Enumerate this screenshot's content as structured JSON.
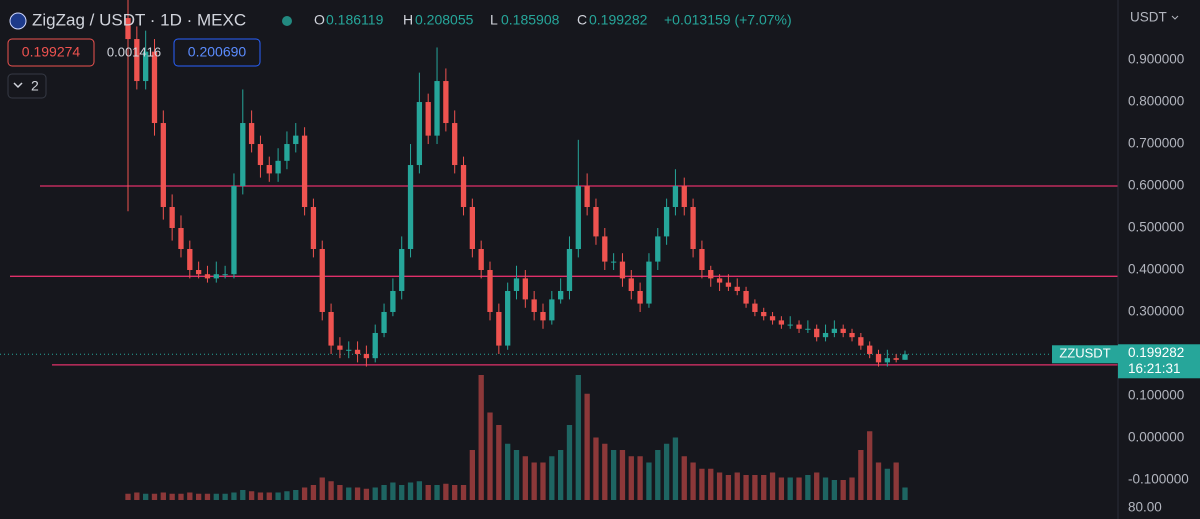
{
  "chart_data": {
    "type": "candlestick",
    "symbol_title": "ZigZag / USDT · 1D · MEXC",
    "ohlc_header": {
      "o_label": "O",
      "o": "0.186119",
      "h_label": "H",
      "h": "0.208055",
      "l_label": "L",
      "l": "0.185908",
      "c_label": "C",
      "c": "0.199282",
      "change": "+0.013159 (+7.07%)"
    },
    "sell_price": "0.199274",
    "spread": "0.001416",
    "buy_price": "0.200690",
    "indicators_count": "2",
    "currency": "USDT",
    "ticker": "ZZUSDT",
    "last_price": "0.199282",
    "countdown": "16:21:31",
    "volume_axis_label": "80.00",
    "open": [
      1.0,
      0.95,
      0.85,
      0.92,
      0.75,
      0.55,
      0.5,
      0.45,
      0.4,
      0.39,
      0.38,
      0.39,
      0.39,
      0.6,
      0.75,
      0.7,
      0.65,
      0.63,
      0.66,
      0.7,
      0.72,
      0.55,
      0.45,
      0.3,
      0.22,
      0.21,
      0.21,
      0.2,
      0.19,
      0.25,
      0.3,
      0.35,
      0.45,
      0.65,
      0.8,
      0.72,
      0.85,
      0.75,
      0.65,
      0.55,
      0.45,
      0.4,
      0.3,
      0.22,
      0.35,
      0.38,
      0.33,
      0.3,
      0.28,
      0.33,
      0.35,
      0.45,
      0.6,
      0.55,
      0.48,
      0.42,
      0.42,
      0.38,
      0.35,
      0.32,
      0.42,
      0.48,
      0.55,
      0.6,
      0.55,
      0.45,
      0.4,
      0.38,
      0.37,
      0.36,
      0.35,
      0.32,
      0.3,
      0.29,
      0.28,
      0.27,
      0.27,
      0.26,
      0.26,
      0.24,
      0.25,
      0.26,
      0.25,
      0.24,
      0.22,
      0.2,
      0.18,
      0.19,
      0.186119
    ],
    "high": [
      1.05,
      0.98,
      0.97,
      0.95,
      0.78,
      0.58,
      0.53,
      0.47,
      0.42,
      0.41,
      0.42,
      0.41,
      0.63,
      0.83,
      0.78,
      0.72,
      0.67,
      0.69,
      0.73,
      0.75,
      0.74,
      0.57,
      0.47,
      0.32,
      0.24,
      0.23,
      0.23,
      0.22,
      0.27,
      0.32,
      0.38,
      0.48,
      0.7,
      0.87,
      0.82,
      0.93,
      0.88,
      0.78,
      0.67,
      0.57,
      0.47,
      0.42,
      0.32,
      0.37,
      0.41,
      0.4,
      0.35,
      0.32,
      0.35,
      0.38,
      0.48,
      0.71,
      0.63,
      0.57,
      0.5,
      0.44,
      0.44,
      0.4,
      0.37,
      0.44,
      0.5,
      0.57,
      0.64,
      0.62,
      0.57,
      0.47,
      0.41,
      0.39,
      0.39,
      0.38,
      0.36,
      0.33,
      0.31,
      0.3,
      0.29,
      0.29,
      0.28,
      0.28,
      0.27,
      0.27,
      0.28,
      0.27,
      0.26,
      0.25,
      0.23,
      0.21,
      0.21,
      0.2,
      0.208055
    ],
    "low": [
      0.54,
      0.83,
      0.83,
      0.72,
      0.52,
      0.47,
      0.43,
      0.38,
      0.38,
      0.37,
      0.37,
      0.38,
      0.38,
      0.58,
      0.68,
      0.62,
      0.61,
      0.61,
      0.64,
      0.68,
      0.53,
      0.43,
      0.28,
      0.2,
      0.19,
      0.19,
      0.18,
      0.17,
      0.18,
      0.24,
      0.29,
      0.33,
      0.43,
      0.63,
      0.7,
      0.7,
      0.73,
      0.63,
      0.53,
      0.43,
      0.38,
      0.28,
      0.2,
      0.21,
      0.33,
      0.31,
      0.28,
      0.26,
      0.27,
      0.32,
      0.33,
      0.43,
      0.53,
      0.46,
      0.4,
      0.4,
      0.36,
      0.33,
      0.3,
      0.31,
      0.4,
      0.46,
      0.53,
      0.53,
      0.43,
      0.38,
      0.36,
      0.35,
      0.35,
      0.34,
      0.31,
      0.29,
      0.28,
      0.27,
      0.26,
      0.26,
      0.25,
      0.25,
      0.23,
      0.23,
      0.24,
      0.24,
      0.23,
      0.21,
      0.19,
      0.17,
      0.17,
      0.18,
      0.185908
    ],
    "close": [
      0.95,
      0.85,
      0.92,
      0.75,
      0.55,
      0.5,
      0.45,
      0.4,
      0.39,
      0.38,
      0.39,
      0.39,
      0.6,
      0.75,
      0.7,
      0.65,
      0.63,
      0.66,
      0.7,
      0.72,
      0.55,
      0.45,
      0.3,
      0.22,
      0.21,
      0.21,
      0.2,
      0.19,
      0.25,
      0.3,
      0.35,
      0.45,
      0.65,
      0.8,
      0.72,
      0.85,
      0.75,
      0.65,
      0.55,
      0.45,
      0.4,
      0.3,
      0.22,
      0.35,
      0.38,
      0.33,
      0.3,
      0.28,
      0.33,
      0.35,
      0.45,
      0.6,
      0.55,
      0.48,
      0.42,
      0.42,
      0.38,
      0.35,
      0.32,
      0.42,
      0.48,
      0.55,
      0.6,
      0.55,
      0.45,
      0.4,
      0.38,
      0.37,
      0.36,
      0.35,
      0.32,
      0.3,
      0.29,
      0.28,
      0.27,
      0.27,
      0.26,
      0.26,
      0.24,
      0.25,
      0.26,
      0.25,
      0.24,
      0.22,
      0.2,
      0.18,
      0.19,
      0.186119,
      0.199282
    ],
    "volume": [
      5,
      6,
      5,
      5,
      6,
      5,
      5,
      6,
      5,
      5,
      5,
      5,
      6,
      8,
      7,
      6,
      6,
      6,
      7,
      8,
      10,
      12,
      18,
      15,
      12,
      10,
      10,
      9,
      10,
      12,
      14,
      12,
      14,
      15,
      12,
      12,
      13,
      12,
      12,
      40,
      100,
      70,
      60,
      45,
      40,
      35,
      30,
      30,
      35,
      40,
      60,
      100,
      85,
      50,
      45,
      40,
      40,
      35,
      35,
      30,
      40,
      45,
      50,
      35,
      30,
      25,
      25,
      22,
      20,
      22,
      20,
      20,
      20,
      22,
      18,
      18,
      18,
      20,
      22,
      18,
      16,
      16,
      18,
      40,
      55,
      30,
      25,
      30,
      10
    ],
    "volume_max": 100,
    "up_color": "#26a69a",
    "down_color": "#ef5350",
    "level_color": "#e0306a",
    "levels": [
      0.6,
      0.385,
      0.174
    ],
    "ylim": [
      -0.193,
      1.043
    ],
    "yticks": [
      {
        "value": 0.9,
        "label": "0.900000"
      },
      {
        "value": 0.8,
        "label": "0.800000"
      },
      {
        "value": 0.7,
        "label": "0.700000"
      },
      {
        "value": 0.6,
        "label": "0.600000"
      },
      {
        "value": 0.5,
        "label": "0.500000"
      },
      {
        "value": 0.4,
        "label": "0.400000"
      },
      {
        "value": 0.3,
        "label": "0.300000"
      },
      {
        "value": 0.1,
        "label": "0.100000"
      },
      {
        "value": 0,
        "label": "0.000000"
      },
      {
        "value": -0.1,
        "label": "-0.100000"
      }
    ],
    "last_value": 0.199282
  }
}
